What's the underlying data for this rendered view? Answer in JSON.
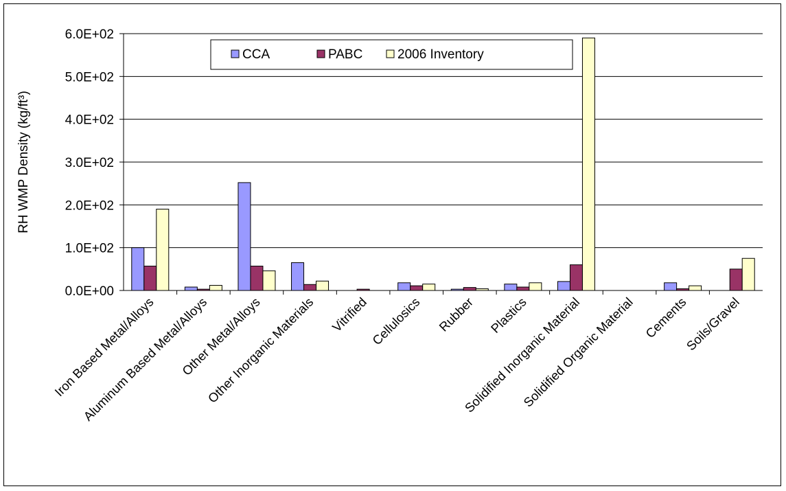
{
  "chart_data": {
    "type": "bar",
    "title": "",
    "xlabel": "",
    "ylabel": "RH WMP Density (kg/ft³)",
    "ylim": [
      0,
      600
    ],
    "yticks": [
      0,
      100,
      200,
      300,
      400,
      500,
      600
    ],
    "ytick_labels": [
      "0.0E+00",
      "1.0E+02",
      "2.0E+02",
      "3.0E+02",
      "4.0E+02",
      "5.0E+02",
      "6.0E+02"
    ],
    "grid": true,
    "legend_position": "top-center",
    "categories": [
      "Iron Based Metal/Alloys",
      "Aluminum Based Metal/Alloys",
      "Other Metal/Alloys",
      "Other Inorganic Materials",
      "Vitrified",
      "Cellulosics",
      "Rubber",
      "Plastics",
      "Solidified Inorganic Material",
      "Solidified Organic Material",
      "Cements",
      "Soils/Gravel"
    ],
    "series": [
      {
        "name": "CCA",
        "color": "#9999ff",
        "values": [
          100,
          8,
          252,
          65,
          0,
          18,
          3,
          15,
          21,
          0,
          18,
          0
        ]
      },
      {
        "name": "PABC",
        "color": "#993366",
        "values": [
          57,
          3,
          57,
          14,
          3,
          11,
          7,
          8,
          60,
          0,
          4,
          50
        ]
      },
      {
        "name": "2006 Inventory",
        "color": "#ffffcc",
        "values": [
          190,
          12,
          46,
          22,
          0,
          15,
          4,
          18,
          590,
          0,
          11,
          75
        ]
      }
    ]
  }
}
